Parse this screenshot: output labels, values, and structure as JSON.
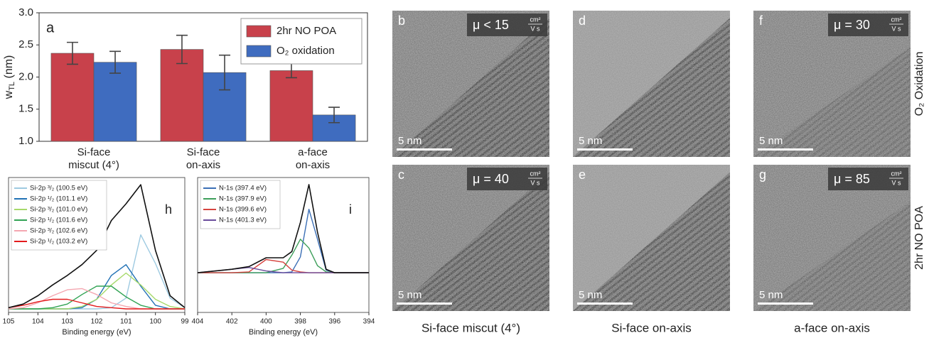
{
  "chart_data": [
    {
      "type": "bar",
      "panel_label": "a",
      "ylabel": [
        "w",
        "TL",
        " (nm)"
      ],
      "categories": [
        "Si-face\nmiscut (4°)",
        "Si-face\non-axis",
        "a-face\non-axis"
      ],
      "series": [
        {
          "name": "2hr NO POA",
          "color": "#c8414b",
          "values": [
            2.37,
            2.43,
            2.1
          ],
          "errors": [
            0.17,
            0.22,
            0.11
          ]
        },
        {
          "name": "O₂ oxidation",
          "color": "#3f6cbf",
          "values": [
            2.23,
            2.07,
            1.41
          ],
          "errors": [
            0.17,
            0.27,
            0.12
          ]
        }
      ],
      "ylim": [
        1.0,
        3.0
      ],
      "yticks": [
        {
          "value": 1.0,
          "label": "1.0"
        },
        1.5,
        {
          "value": 2.0,
          "label": "2.0"
        },
        2.5,
        {
          "value": 3.0,
          "label": "3.0"
        }
      ],
      "legend": "upper right"
    },
    {
      "type": "line",
      "panel_label": "h",
      "xlabel": "Binding energy (eV)",
      "x": [
        105,
        104.5,
        104,
        103.5,
        103,
        102.5,
        102,
        101.5,
        101,
        100.5,
        100,
        99.5,
        99
      ],
      "series": [
        {
          "name": "Si-2p ³/₂ (100.5 eV)",
          "color": "#9ecae1",
          "values": [
            0,
            0,
            0,
            0,
            0,
            0,
            0,
            0.01,
            0.09,
            0.62,
            0.38,
            0.09,
            0.01
          ]
        },
        {
          "name": "Si-2p ¹/₂ (101.1 eV)",
          "color": "#2171b5",
          "values": [
            0,
            0,
            0,
            0,
            0,
            0.01,
            0.08,
            0.28,
            0.37,
            0.19,
            0.03,
            0,
            0
          ]
        },
        {
          "name": "Si-2p ³/₂ (101.0 eV)",
          "color": "#a6d96a",
          "values": [
            0,
            0,
            0,
            0,
            0,
            0.02,
            0.08,
            0.2,
            0.3,
            0.2,
            0.08,
            0.02,
            0
          ]
        },
        {
          "name": "Si-2p ¹/₂ (101.6 eV)",
          "color": "#31a354",
          "values": [
            0,
            0,
            0,
            0.01,
            0.04,
            0.12,
            0.19,
            0.19,
            0.1,
            0.03,
            0,
            0,
            0
          ]
        },
        {
          "name": "Si-2p ³/₂ (102.6 eV)",
          "color": "#f4a6b0",
          "values": [
            0,
            0.01,
            0.05,
            0.11,
            0.16,
            0.17,
            0.12,
            0.05,
            0.02,
            0,
            0,
            0,
            0
          ]
        },
        {
          "name": "Si-2p ¹/₂ (103.2 eV)",
          "color": "#e31a1c",
          "values": [
            0.01,
            0.03,
            0.06,
            0.08,
            0.08,
            0.05,
            0.02,
            0.01,
            0,
            0,
            0,
            0,
            0
          ]
        }
      ],
      "envelope": {
        "color": "#111111",
        "values": [
          0.01,
          0.04,
          0.11,
          0.2,
          0.28,
          0.37,
          0.49,
          0.74,
          0.88,
          1.04,
          0.49,
          0.11,
          0.01
        ]
      },
      "xlim": [
        105,
        99
      ],
      "xticks": [
        105,
        104,
        103,
        102,
        101,
        100,
        99
      ],
      "ylim": [
        -0.03,
        1.1
      ],
      "legend": "upper left"
    },
    {
      "type": "line",
      "panel_label": "i",
      "xlabel": "Binding energy (eV)",
      "x": [
        404,
        402,
        401,
        400,
        399,
        398.5,
        398,
        397.5,
        397,
        396.5,
        396,
        394
      ],
      "series": [
        {
          "name": "N-1s (397.4 eV)",
          "color": "#3b6fb6",
          "values": [
            0,
            0,
            0,
            0,
            0,
            0.01,
            0.18,
            0.72,
            0.38,
            0.03,
            0,
            0
          ]
        },
        {
          "name": "N-1s (397.9 eV)",
          "color": "#3d9e5a",
          "values": [
            0,
            0,
            0,
            0,
            0.05,
            0.2,
            0.38,
            0.28,
            0.08,
            0.01,
            0,
            0
          ]
        },
        {
          "name": "N-1s (399.6 eV)",
          "color": "#d6443f",
          "values": [
            0,
            0,
            0.01,
            0.15,
            0.12,
            0.03,
            0.01,
            0,
            0,
            0,
            0,
            0
          ]
        },
        {
          "name": "N-1s (401.3 eV)",
          "color": "#6a4c9c",
          "values": [
            0,
            0.04,
            0.06,
            0.02,
            0,
            0,
            0,
            0,
            0,
            0,
            0,
            0
          ]
        }
      ],
      "envelope": {
        "color": "#111111",
        "values": [
          0,
          0.04,
          0.07,
          0.17,
          0.17,
          0.24,
          0.57,
          1.0,
          0.46,
          0.04,
          0,
          0
        ]
      },
      "xlim": [
        404,
        394
      ],
      "xticks": [
        404,
        402,
        400,
        398,
        396,
        394
      ],
      "ylim": [
        -0.45,
        1.08
      ],
      "legend": "upper left"
    }
  ],
  "micrographs": {
    "panels": [
      {
        "letter": "b",
        "mobility": "μ < 15",
        "unit_num": "cm²",
        "unit_den": "V s",
        "scale_bar": "5 nm"
      },
      {
        "letter": "d",
        "scale_bar": "5 nm"
      },
      {
        "letter": "f",
        "mobility": "μ = 30",
        "unit_num": "cm²",
        "unit_den": "V s",
        "scale_bar": "5 nm"
      },
      {
        "letter": "c",
        "mobility": "μ = 40",
        "unit_num": "cm²",
        "unit_den": "V s",
        "scale_bar": "5 nm"
      },
      {
        "letter": "e",
        "scale_bar": "5 nm"
      },
      {
        "letter": "g",
        "mobility": "μ = 85",
        "unit_num": "cm²",
        "unit_den": "V s",
        "scale_bar": "5 nm"
      }
    ],
    "columns": [
      "Si-face miscut (4°)",
      "Si-face on-axis",
      "a-face on-axis"
    ],
    "rows": [
      "O₂ Oxidation",
      "2hr NO POA"
    ]
  }
}
